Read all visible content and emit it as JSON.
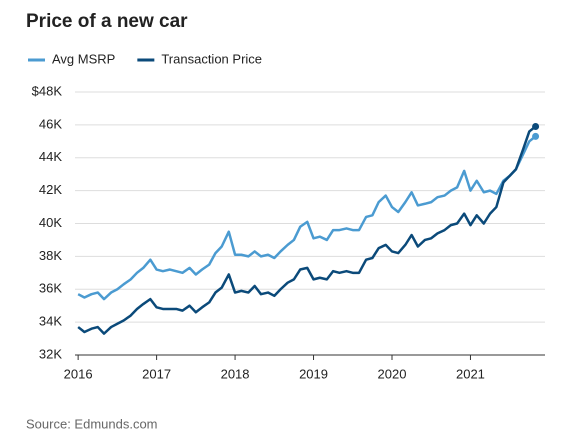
{
  "chart_data": {
    "type": "line",
    "title": "Price of a new car",
    "source": "Source: Edmunds.com",
    "legend": "top-left",
    "grid": true,
    "x": [
      2016,
      2016.08,
      2016.17,
      2016.25,
      2016.33,
      2016.42,
      2016.5,
      2016.58,
      2016.67,
      2016.75,
      2016.83,
      2016.92,
      2017,
      2017.08,
      2017.17,
      2017.25,
      2017.33,
      2017.42,
      2017.5,
      2017.58,
      2017.67,
      2017.75,
      2017.83,
      2017.92,
      2018,
      2018.08,
      2018.17,
      2018.25,
      2018.33,
      2018.42,
      2018.5,
      2018.58,
      2018.67,
      2018.75,
      2018.83,
      2018.92,
      2019,
      2019.08,
      2019.17,
      2019.25,
      2019.33,
      2019.42,
      2019.5,
      2019.58,
      2019.67,
      2019.75,
      2019.83,
      2019.92,
      2020,
      2020.08,
      2020.17,
      2020.25,
      2020.33,
      2020.42,
      2020.5,
      2020.58,
      2020.67,
      2020.75,
      2020.83,
      2020.92,
      2021,
      2021.08,
      2021.17,
      2021.25,
      2021.33,
      2021.42,
      2021.5,
      2021.58,
      2021.67,
      2021.75,
      2021.83
    ],
    "series": [
      {
        "name": "Avg MSRP",
        "color": "#4b9bd1",
        "values": [
          35.7,
          35.5,
          35.7,
          35.8,
          35.4,
          35.8,
          36.0,
          36.3,
          36.6,
          37.0,
          37.3,
          37.8,
          37.2,
          37.1,
          37.2,
          37.1,
          37.0,
          37.3,
          36.9,
          37.2,
          37.5,
          38.2,
          38.6,
          39.5,
          38.1,
          38.1,
          38.0,
          38.3,
          38.0,
          38.1,
          37.9,
          38.3,
          38.7,
          39.0,
          39.8,
          40.1,
          39.1,
          39.2,
          39.0,
          39.6,
          39.6,
          39.7,
          39.6,
          39.6,
          40.4,
          40.5,
          41.3,
          41.7,
          41.0,
          40.7,
          41.3,
          41.9,
          41.1,
          41.2,
          41.3,
          41.6,
          41.7,
          42.0,
          42.2,
          43.2,
          42.0,
          42.6,
          41.9,
          42.0,
          41.8,
          42.6,
          42.9,
          43.3,
          44.2,
          45.0,
          45.3
        ]
      },
      {
        "name": "Transaction Price",
        "color": "#0b4a7a",
        "values": [
          33.7,
          33.4,
          33.6,
          33.7,
          33.3,
          33.7,
          33.9,
          34.1,
          34.4,
          34.8,
          35.1,
          35.4,
          34.9,
          34.8,
          34.8,
          34.8,
          34.7,
          35.0,
          34.6,
          34.9,
          35.2,
          35.8,
          36.1,
          36.9,
          35.8,
          35.9,
          35.8,
          36.2,
          35.7,
          35.8,
          35.6,
          36.0,
          36.4,
          36.6,
          37.2,
          37.3,
          36.6,
          36.7,
          36.6,
          37.1,
          37.0,
          37.1,
          37.0,
          37.0,
          37.8,
          37.9,
          38.5,
          38.7,
          38.3,
          38.2,
          38.7,
          39.3,
          38.6,
          39.0,
          39.1,
          39.4,
          39.6,
          39.9,
          40.0,
          40.6,
          39.9,
          40.5,
          40.0,
          40.6,
          41.0,
          42.5,
          42.9,
          43.3,
          44.5,
          45.6,
          45.9
        ]
      }
    ],
    "xlim": [
      2015.96,
      2021.95
    ],
    "xticks": [
      2016,
      2017,
      2018,
      2019,
      2020,
      2021
    ],
    "ylim": [
      32,
      48
    ],
    "yticks": [
      {
        "value": 32,
        "label": "32K"
      },
      {
        "value": 34,
        "label": "34K"
      },
      {
        "value": 36,
        "label": "36K"
      },
      {
        "value": 38,
        "label": "38K"
      },
      {
        "value": 40,
        "label": "40K"
      },
      {
        "value": 42,
        "label": "42K"
      },
      {
        "value": 44,
        "label": "44K"
      },
      {
        "value": 46,
        "label": "46K"
      },
      {
        "value": 48,
        "label": "$48K"
      }
    ]
  }
}
